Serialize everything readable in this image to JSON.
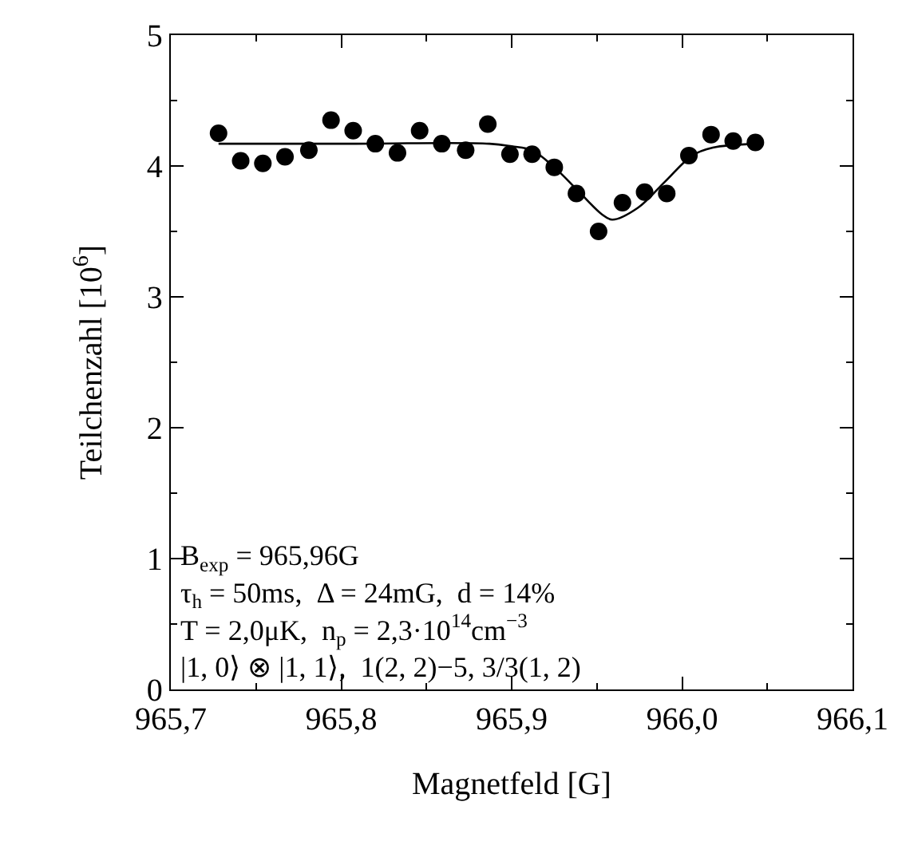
{
  "chart_data": {
    "type": "scatter",
    "xlabel": "Magnetfeld [G]",
    "ylabel": "Teilchenzahl [10$^{6}$]",
    "series": [
      {
        "color": "#000000",
        "marker": "circle",
        "x": [
          965.728,
          965.741,
          965.754,
          965.767,
          965.781,
          965.794,
          965.807,
          965.82,
          965.833,
          965.846,
          965.859,
          965.873,
          965.886,
          965.899,
          965.912,
          965.925,
          965.938,
          965.951,
          965.965,
          965.978,
          965.991,
          966.004,
          966.017,
          966.03,
          966.043
        ],
        "values": [
          4.25,
          4.04,
          4.02,
          4.07,
          4.12,
          4.35,
          4.27,
          4.17,
          4.1,
          4.27,
          4.17,
          4.12,
          4.32,
          4.09,
          4.09,
          3.99,
          3.79,
          3.5,
          3.72,
          3.8,
          3.79,
          4.08,
          4.24,
          4.19,
          4.18
        ]
      },
      {
        "type": "line",
        "color": "#000000",
        "line_style": "solid",
        "x": [
          965.728,
          965.8,
          965.887,
          965.9,
          965.912,
          965.925,
          965.939,
          965.953,
          965.959,
          965.974,
          965.99,
          966.006,
          966.018,
          966.043
        ],
        "values": [
          4.17,
          4.17,
          4.17,
          4.15,
          4.12,
          3.99,
          3.81,
          3.63,
          3.59,
          3.68,
          3.88,
          4.08,
          4.14,
          4.17
        ]
      }
    ],
    "xlim": [
      965.7,
      966.1
    ],
    "xticks": [
      {
        "value": 965.7,
        "label": "965,7"
      },
      {
        "value": 965.75,
        "label": null
      },
      {
        "value": 965.8,
        "label": "965,8"
      },
      {
        "value": 965.85,
        "label": null
      },
      {
        "value": 965.9,
        "label": "965,9"
      },
      {
        "value": 965.95,
        "label": null
      },
      {
        "value": 966.0,
        "label": "966,0"
      },
      {
        "value": 966.05,
        "label": null
      },
      {
        "value": 966.1,
        "label": "966,1"
      }
    ],
    "ylim": [
      0,
      5
    ],
    "yticks": [
      0,
      {
        "value": 0.5,
        "label": null
      },
      1,
      {
        "value": 1.5,
        "label": null
      },
      2,
      {
        "value": 2.5,
        "label": null
      },
      3,
      {
        "value": 3.5,
        "label": null
      },
      4,
      {
        "value": 4.5,
        "label": null
      },
      5
    ],
    "grid": false,
    "annotations": [
      "B$_{exp}$ = 965,96G",
      "τ$_{h}$ = 50ms,  Δ = 24mG,  d = 14%",
      "T = 2,0μK,  n$_{p}$ = 2,3·10$^{14}$cm$^{−3}$",
      "|1, 0⟩ ⊗ |1, 1⟩,  1(2, 2)−5, 3/3(1, 2)"
    ]
  }
}
